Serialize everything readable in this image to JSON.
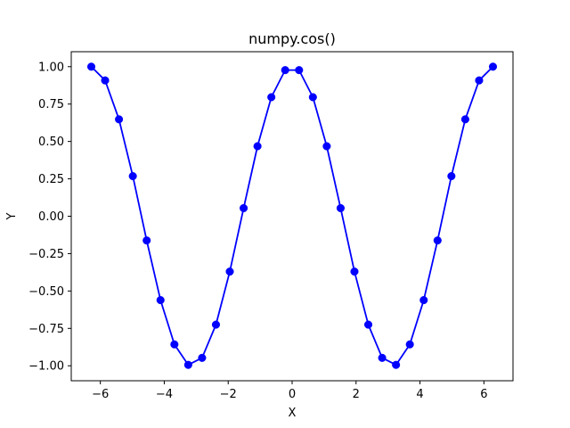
{
  "chart_data": {
    "type": "line",
    "title": "numpy.cos()",
    "xlabel": "X",
    "ylabel": "Y",
    "xlim": [
      -6.91,
      6.91
    ],
    "ylim": [
      -1.1,
      1.1
    ],
    "xticks": [
      -6,
      -4,
      -2,
      0,
      2,
      4,
      6
    ],
    "xtick_labels": [
      "−6",
      "−4",
      "−2",
      "0",
      "2",
      "4",
      "6"
    ],
    "yticks": [
      -1.0,
      -0.75,
      -0.5,
      -0.25,
      0.0,
      0.25,
      0.5,
      0.75,
      1.0
    ],
    "ytick_labels": [
      "−1.00",
      "−0.75",
      "−0.50",
      "−0.25",
      "0.00",
      "0.25",
      "0.50",
      "0.75",
      "1.00"
    ],
    "grid": false,
    "series": [
      {
        "color": "#0000ff",
        "marker": "circle",
        "line_style": "solid",
        "x": [
          -6.283,
          -5.85,
          -5.417,
          -4.983,
          -4.55,
          -4.117,
          -3.683,
          -3.25,
          -2.817,
          -2.383,
          -1.95,
          -1.517,
          -1.083,
          -0.65,
          -0.217,
          0.217,
          0.65,
          1.083,
          1.517,
          1.95,
          2.383,
          2.817,
          3.25,
          3.683,
          4.117,
          4.55,
          4.983,
          5.417,
          5.85,
          6.283
        ],
        "y": [
          1.0,
          0.908,
          0.648,
          0.268,
          -0.162,
          -0.561,
          -0.857,
          -0.994,
          -0.947,
          -0.725,
          -0.37,
          0.054,
          0.468,
          0.796,
          0.977,
          0.977,
          0.796,
          0.468,
          0.054,
          -0.37,
          -0.725,
          -0.947,
          -0.994,
          -0.857,
          -0.561,
          -0.162,
          0.268,
          0.648,
          0.908,
          1.0
        ]
      }
    ]
  }
}
